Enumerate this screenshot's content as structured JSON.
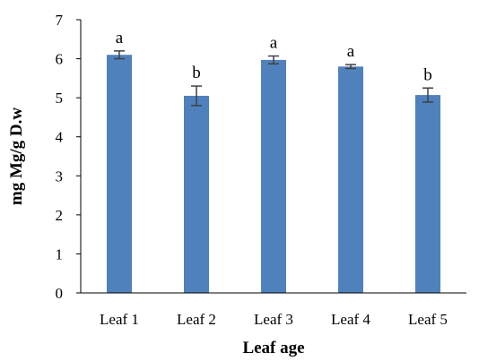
{
  "chart_data": {
    "type": "bar",
    "categories": [
      "Leaf 1",
      "Leaf 2",
      "Leaf 3",
      "Leaf 4",
      "Leaf 5"
    ],
    "values": [
      6.1,
      5.05,
      5.97,
      5.8,
      5.07
    ],
    "error": [
      0.1,
      0.25,
      0.1,
      0.05,
      0.18
    ],
    "labels": [
      "a",
      "b",
      "a",
      "a",
      "b"
    ],
    "xlabel": "Leaf age",
    "ylabel": "mg Mg/g D.w",
    "ylim": [
      0,
      7
    ],
    "yticks": [
      0,
      1,
      2,
      3,
      4,
      5,
      6,
      7
    ],
    "bar_color": "#4f81bd",
    "error_color": "#404040",
    "grid": false
  }
}
